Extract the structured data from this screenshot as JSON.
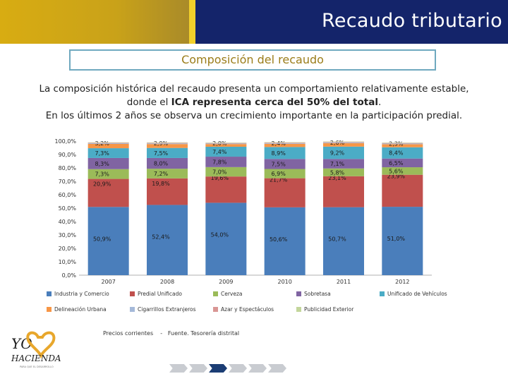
{
  "header": {
    "title": "Recaudo tributario"
  },
  "subtitle": "Composición del recaudo",
  "paragraph": {
    "line1": "La composición histórica del recaudo presenta un comportamiento relativamente estable,",
    "line2_pre": "donde el ",
    "line2_bold": "ICA representa cerca del 50% del total",
    "line2_post": ".",
    "line3": "En los últimos 2 años se observa un crecimiento importante en la participación predial."
  },
  "source": {
    "left": "Precios corrientes",
    "sep": "-",
    "right": "Fuente. Tesorería distrital"
  },
  "logo": {
    "text_top": "YO",
    "text_bottom": "HACIENDA",
    "tagline": "PARA QUE EL DESARROLLO"
  },
  "nav": {
    "active_index": 2,
    "count": 6
  },
  "colors": {
    "industria": "#4a7ebb",
    "predial": "#e06b3b",
    "cerveza": "#9bbb59",
    "sobretasa": "#7b5da6",
    "vehiculos": "#3f9fc0",
    "delineacion": "#e8832f",
    "cigarrillos": "#a8bde0",
    "azar": "#d58f8a",
    "publicidad": "#c3d69b"
  },
  "chart_data": {
    "type": "bar",
    "stacked": true,
    "categories": [
      "2007",
      "2008",
      "2009",
      "2010",
      "2011",
      "2012"
    ],
    "ylim": [
      0,
      100
    ],
    "yticks": [
      "0,0%",
      "10,0%",
      "20,0%",
      "30,0%",
      "40,0%",
      "50,0%",
      "60,0%",
      "70,0%",
      "80,0%",
      "90,0%",
      "100,0%"
    ],
    "grid": false,
    "legend_position": "bottom",
    "series": [
      {
        "name": "Industria y Comercio",
        "color": "#4a7ebb",
        "values": [
          50.9,
          52.4,
          54.0,
          50.6,
          50.7,
          51.0
        ],
        "labels": [
          "50,9%",
          "52,4%",
          "54,0%",
          "50,6%",
          "50,7%",
          "51,0%"
        ]
      },
      {
        "name": "Predial Unificado",
        "color": "#c0504d",
        "values": [
          20.9,
          19.8,
          19.6,
          21.7,
          23.1,
          23.9
        ],
        "labels": [
          "20,9%",
          "19,8%",
          "19,6%",
          "21,7%",
          "23,1%",
          "23,9%"
        ]
      },
      {
        "name": "Cerveza",
        "color": "#9bbb59",
        "values": [
          7.3,
          7.2,
          7.0,
          6.9,
          5.8,
          5.6
        ],
        "labels": [
          "7,3%",
          "7,2%",
          "7,0%",
          "6,9%",
          "5,8%",
          "5,6%"
        ]
      },
      {
        "name": "Sobretasa",
        "color": "#8064a2",
        "values": [
          8.3,
          8.0,
          7.8,
          7.5,
          7.1,
          6.5
        ],
        "labels": [
          "8,3%",
          "8,0%",
          "7,8%",
          "7,5%",
          "7,1%",
          "6,5%"
        ]
      },
      {
        "name": "Unificado de Vehículos",
        "color": "#4bacc6",
        "values": [
          7.3,
          7.5,
          7.4,
          8.9,
          9.2,
          8.4
        ],
        "labels": [
          "7,3%",
          "7,5%",
          "7,4%",
          "8,9%",
          "9,2%",
          "8,4%"
        ]
      },
      {
        "name": "Delineación Urbana",
        "color": "#f79646",
        "values": [
          3.2,
          2.9,
          2.0,
          2.4,
          2.6,
          2.3
        ],
        "labels": [
          "3,2%",
          "2,9%",
          "2,0%",
          "2,4%",
          "2,6%",
          "2,3%"
        ]
      },
      {
        "name": "Cigarrillos Extranjeros",
        "color": "#a5b9d9",
        "values": [
          0.5,
          0.5,
          0.4,
          0.5,
          0.5,
          0.5
        ],
        "labels": [
          "",
          "",
          "",
          "",
          "",
          ""
        ]
      },
      {
        "name": "Azar y Espectáculos",
        "color": "#d99694",
        "values": [
          0.4,
          0.4,
          0.4,
          0.4,
          0.4,
          0.4
        ],
        "labels": [
          "",
          "",
          "",
          "",
          "",
          ""
        ]
      },
      {
        "name": "Publicidad Exterior",
        "color": "#c3d69b",
        "values": [
          0.3,
          0.3,
          0.3,
          0.3,
          0.3,
          0.3
        ],
        "labels": [
          "",
          "",
          "",
          "",
          "",
          ""
        ]
      }
    ],
    "legend": [
      [
        "Industria y Comercio",
        "Predial Unificado",
        "Cerveza",
        "Sobretasa",
        "Unificado de Vehículos"
      ],
      [
        "Delineación Urbana",
        "Cigarrillos Extranjeros",
        "Azar y Espectáculos",
        "Publicidad Exterior"
      ]
    ]
  }
}
